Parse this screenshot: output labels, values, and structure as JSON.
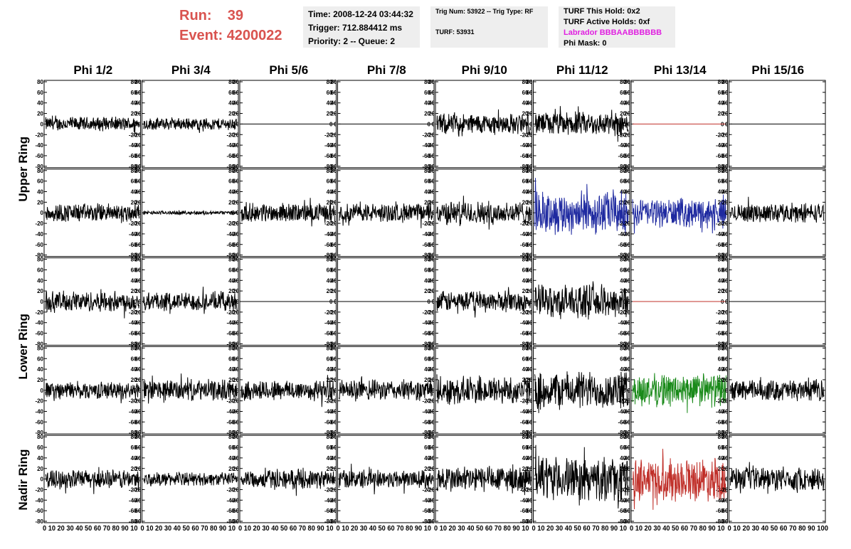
{
  "header": {
    "run_label": "Run:",
    "run_value": "39",
    "event_label": "Event:",
    "event_value": "4200022",
    "time": "Time: 2008-12-24 03:44:32",
    "trigger": "Trigger: 712.884412 ms",
    "priority": "Priority: 2 -- Queue: 2",
    "trig_num": "Trig Num: 53922 -- Trig Type: RF",
    "turf": "TURF: 53931",
    "turf_this_hold": "TURF This Hold: 0x2",
    "turf_active_holds": "TURF Active Holds: 0xf",
    "labrador": "Labrador BBBAABBBBBB",
    "phi_mask": "Phi Mask: 0"
  },
  "colors": {
    "header_red": "#d9534f",
    "labrador_magenta": "#e020e0",
    "trace_black": "#000000",
    "trace_blue": "#1f2aa0",
    "trace_green": "#1a8a1a",
    "trace_red": "#c0302a",
    "infobox_bg": "#eeeeee"
  },
  "chart_data": {
    "type": "line",
    "columns": [
      "Phi 1/2",
      "Phi 3/4",
      "Phi 5/6",
      "Phi 7/8",
      "Phi 9/10",
      "Phi 11/12",
      "Phi 13/14",
      "Phi 15/16"
    ],
    "ring_labels": [
      {
        "text": "Upper Ring",
        "rows": [
          0,
          1
        ]
      },
      {
        "text": "Lower Ring",
        "rows": [
          2,
          3
        ]
      },
      {
        "text": "Nadir Ring",
        "rows": [
          4,
          4
        ]
      }
    ],
    "ylim": [
      -80,
      80
    ],
    "yticks": [
      "-80",
      "-60",
      "-40",
      "-20",
      "0",
      "20",
      "40",
      "60",
      "80"
    ],
    "xlim": [
      0,
      100
    ],
    "xtick_text": [
      "0 10 20 30 40 50 60 70 80 90 10",
      "0 10 20 30 40 50 60 70 80 90 10",
      "0 10 20 30 40 50 60 70 80 90 10",
      "0 10 20 30 40 50 60 70 80 90 10",
      "0 10 20 30 40 50 60 70 80 90 10",
      "0 10 20 30 40 50 60 70 80 90 10",
      "0 10 20 30 40 50 60 70 80 90 10",
      "0 10 20 30 40 50 60 70 80 90 100"
    ],
    "panels": [
      [
        {
          "color": "black",
          "amp": 15,
          "flat": false
        },
        {
          "color": "black",
          "amp": 13,
          "flat": false
        },
        {
          "color": "black",
          "amp": 0,
          "flat": true
        },
        {
          "color": "black",
          "amp": 0,
          "flat": true
        },
        {
          "color": "black",
          "amp": 22,
          "flat": false
        },
        {
          "color": "black",
          "amp": 25,
          "flat": false
        },
        {
          "color": "red",
          "amp": 0,
          "flat": true
        },
        {
          "color": "black",
          "amp": 0,
          "flat": true
        }
      ],
      [
        {
          "color": "black",
          "amp": 20,
          "flat": false
        },
        {
          "color": "black",
          "amp": 4,
          "flat": false
        },
        {
          "color": "black",
          "amp": 20,
          "flat": false
        },
        {
          "color": "black",
          "amp": 20,
          "flat": false
        },
        {
          "color": "black",
          "amp": 25,
          "flat": false
        },
        {
          "color": "blue",
          "amp": 45,
          "flat": false
        },
        {
          "color": "blue",
          "amp": 30,
          "flat": false
        },
        {
          "color": "black",
          "amp": 20,
          "flat": false
        }
      ],
      [
        {
          "color": "black",
          "amp": 22,
          "flat": false
        },
        {
          "color": "black",
          "amp": 20,
          "flat": false
        },
        {
          "color": "black",
          "amp": 0,
          "flat": true
        },
        {
          "color": "black",
          "amp": 0,
          "flat": true
        },
        {
          "color": "black",
          "amp": 22,
          "flat": false
        },
        {
          "color": "black",
          "amp": 35,
          "flat": false
        },
        {
          "color": "red",
          "amp": 0,
          "flat": true
        },
        {
          "color": "black",
          "amp": 0,
          "flat": true
        }
      ],
      [
        {
          "color": "black",
          "amp": 18,
          "flat": false
        },
        {
          "color": "black",
          "amp": 22,
          "flat": false
        },
        {
          "color": "black",
          "amp": 22,
          "flat": false
        },
        {
          "color": "black",
          "amp": 22,
          "flat": false
        },
        {
          "color": "black",
          "amp": 30,
          "flat": false
        },
        {
          "color": "black",
          "amp": 40,
          "flat": false
        },
        {
          "color": "green",
          "amp": 35,
          "flat": false
        },
        {
          "color": "black",
          "amp": 22,
          "flat": false
        }
      ],
      [
        {
          "color": "black",
          "amp": 20,
          "flat": false
        },
        {
          "color": "black",
          "amp": 14,
          "flat": false
        },
        {
          "color": "black",
          "amp": 20,
          "flat": false
        },
        {
          "color": "black",
          "amp": 20,
          "flat": false
        },
        {
          "color": "black",
          "amp": 28,
          "flat": false
        },
        {
          "color": "black",
          "amp": 45,
          "flat": false
        },
        {
          "color": "red",
          "amp": 45,
          "flat": false
        },
        {
          "color": "black",
          "amp": 25,
          "flat": false
        }
      ]
    ]
  }
}
